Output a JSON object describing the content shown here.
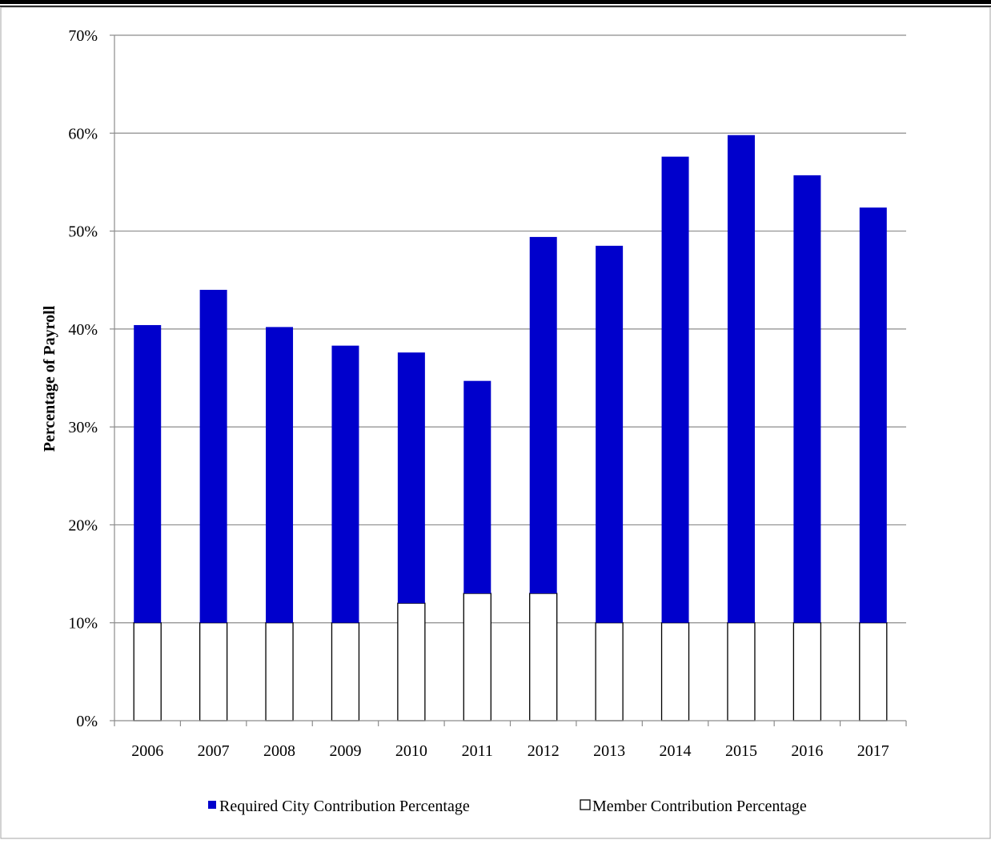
{
  "chart_data": {
    "type": "bar",
    "stacked": true,
    "categories": [
      "2006",
      "2007",
      "2008",
      "2009",
      "2010",
      "2011",
      "2012",
      "2013",
      "2014",
      "2015",
      "2016",
      "2017"
    ],
    "series": [
      {
        "name": "Member Contribution Percentage",
        "values": [
          10,
          10,
          10,
          10,
          12,
          13,
          13,
          10,
          10,
          10,
          10,
          10
        ],
        "color": "#ffffff"
      },
      {
        "name": "Required City Contribution Percentage",
        "values": [
          30.4,
          34.0,
          30.2,
          28.3,
          25.6,
          21.7,
          36.4,
          38.5,
          47.6,
          49.8,
          45.7,
          42.4
        ],
        "color": "#0000cc"
      }
    ],
    "totals": [
      40.4,
      44.0,
      40.2,
      38.3,
      37.6,
      34.7,
      49.4,
      48.5,
      57.6,
      59.8,
      55.7,
      52.4
    ],
    "ylabel": "Percentage of Payroll",
    "ylim": [
      0,
      70
    ],
    "yticks": [
      "0%",
      "10%",
      "20%",
      "30%",
      "40%",
      "50%",
      "60%",
      "70%"
    ],
    "grid": true,
    "legend_position": "bottom",
    "legend": [
      "Required City Contribution Percentage",
      "Member Contribution Percentage"
    ]
  }
}
